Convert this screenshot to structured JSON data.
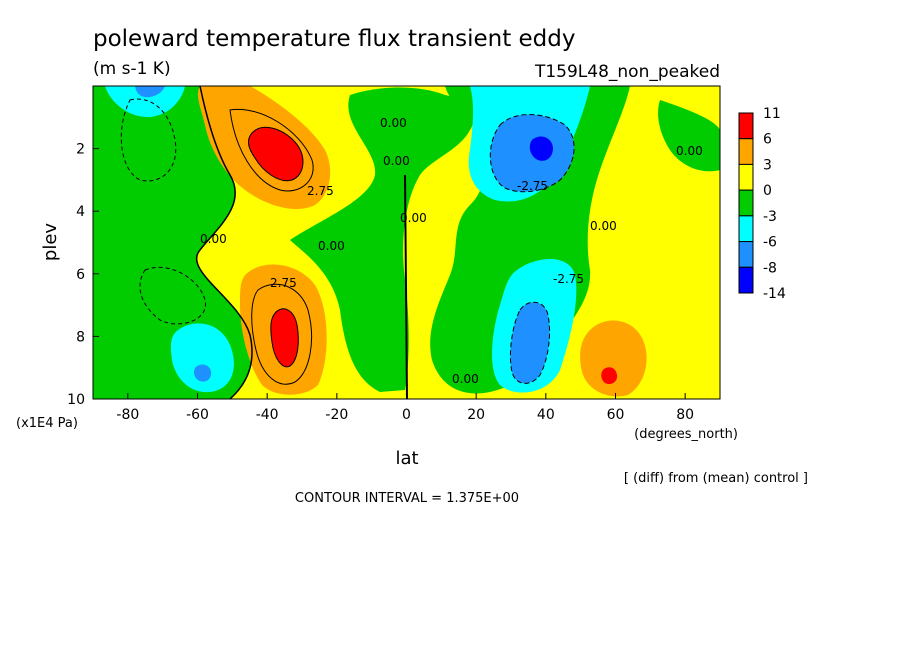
{
  "chart_data": {
    "type": "heatmap",
    "title": "poleward temperature flux transient eddy",
    "units": "(m s-1 K)",
    "dataset": "T159L48_non_peaked",
    "xlabel": "lat",
    "x_units": "(degrees_north)",
    "ylabel": "plev",
    "y_units": "(x1E4 Pa)",
    "xlim": [
      -90,
      90
    ],
    "ylim": [
      10,
      0
    ],
    "x_ticks": [
      -80,
      -60,
      -40,
      -20,
      0,
      20,
      40,
      60,
      80
    ],
    "y_ticks": [
      2,
      4,
      6,
      8,
      10
    ],
    "note": "[ (diff) from (mean) control ]",
    "contour_interval_text": "CONTOUR INTERVAL = 1.375E+00",
    "contour_labels": [
      "0.00",
      "0.00",
      "0.00",
      "0.00",
      "0.00",
      "0.00",
      "0.00",
      "0.00",
      "2.75",
      "2.75",
      "-2.75",
      "-2.75"
    ],
    "colorbar": {
      "levels": [
        "11",
        "6",
        "3",
        "0",
        "-3",
        "-6",
        "-8",
        "-14"
      ],
      "colors": [
        "#ff0000",
        "#ffa500",
        "#ffff00",
        "#00cc00",
        "#00ffff",
        "#1e90ff",
        "#0000ff"
      ]
    },
    "features": [
      {
        "name": "positive max",
        "lat": -37,
        "plev": 2.1,
        "value": 8
      },
      {
        "name": "positive max",
        "lat": -36,
        "plev": 8.1,
        "value": 8
      },
      {
        "name": "positive max",
        "lat": 60,
        "plev": 9.1,
        "value": 7
      },
      {
        "name": "negative min",
        "lat": 39,
        "plev": 2.0,
        "value": -7
      },
      {
        "name": "negative min",
        "lat": 36,
        "plev": 7.8,
        "value": -6
      },
      {
        "name": "negative min",
        "lat": -60,
        "plev": 9.1,
        "value": -4
      },
      {
        "name": "negative min",
        "lat": -80,
        "plev": 0.4,
        "value": -4
      }
    ]
  }
}
